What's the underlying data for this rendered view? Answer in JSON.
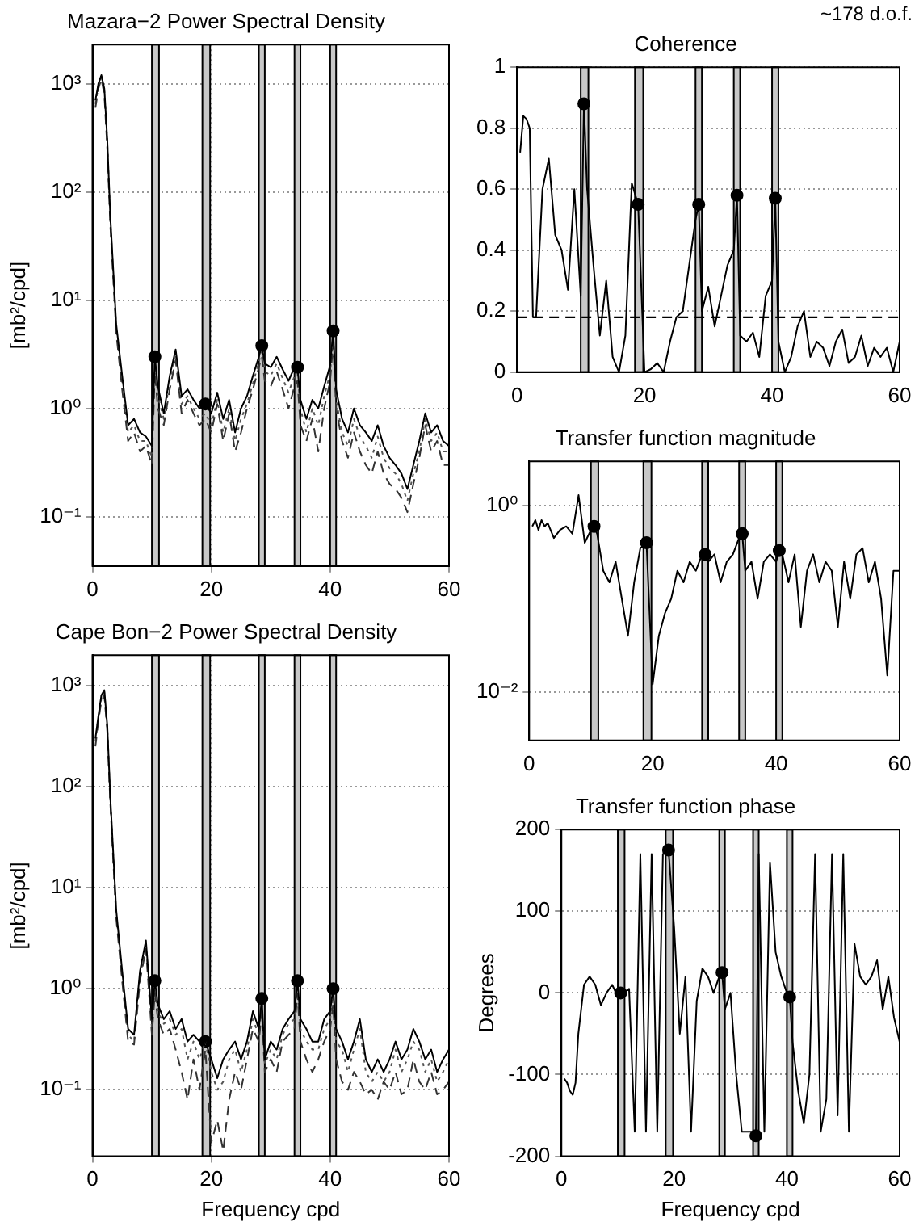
{
  "chart_data": [
    {
      "type": "line",
      "title": "Mazara−2 Power Spectral Density",
      "ylabel": "[mb²/cpd]",
      "log": true,
      "grid": true,
      "xlim": [
        0,
        60
      ],
      "xticks": [
        0,
        20,
        40,
        60
      ],
      "ylim": [
        0.035,
        2300
      ],
      "yticks": [
        {
          "value": 0.1,
          "label": "10⁻¹"
        },
        {
          "value": 1,
          "label": "10⁰"
        },
        {
          "value": 10,
          "label": "10¹"
        },
        {
          "value": 100,
          "label": "10²"
        },
        {
          "value": 1000,
          "label": "10³"
        }
      ],
      "x": [
        0.5,
        1,
        1.5,
        2,
        2.5,
        3,
        4,
        5,
        6,
        7,
        8,
        9,
        10,
        10.5,
        11,
        12,
        13,
        14,
        15,
        16,
        17,
        18,
        19,
        20,
        21,
        22,
        23,
        24,
        25,
        26,
        27,
        28,
        28.5,
        29,
        30,
        31,
        32,
        33,
        34,
        34.5,
        35,
        36,
        37,
        38,
        39,
        40,
        40.5,
        41,
        42,
        43,
        44,
        45,
        46,
        47,
        48,
        49,
        50,
        51,
        52,
        53,
        54,
        55,
        56,
        57,
        58,
        59,
        60
      ],
      "bands": [
        {
          "axis": "x",
          "from": 10,
          "to": 11.2,
          "color": "#c8c8c8"
        },
        {
          "axis": "x",
          "from": 18.5,
          "to": 19.8,
          "color": "#c8c8c8"
        },
        {
          "axis": "x",
          "from": 28,
          "to": 29,
          "color": "#c8c8c8"
        },
        {
          "axis": "x",
          "from": 34,
          "to": 35,
          "color": "#c8c8c8"
        },
        {
          "axis": "x",
          "from": 40,
          "to": 41,
          "color": "#c8c8c8"
        }
      ],
      "series": [
        {
          "color": "#000000",
          "line_style": "solid",
          "values": [
            700,
            1000,
            1200,
            900,
            300,
            60,
            6,
            2,
            0.7,
            0.8,
            0.6,
            0.55,
            0.45,
            3,
            1.6,
            0.9,
            2,
            3.5,
            1.3,
            1.5,
            1.2,
            1.0,
            1.1,
            0.9,
            1.4,
            0.8,
            1.2,
            0.6,
            1.0,
            1.3,
            2.0,
            3.0,
            3.8,
            2.6,
            2.4,
            3.0,
            2.3,
            1.8,
            2.4,
            2.4,
            1.2,
            0.8,
            1.2,
            1.0,
            1.6,
            2.5,
            5.2,
            1.5,
            0.8,
            0.6,
            1.0,
            0.7,
            0.6,
            0.5,
            0.7,
            0.45,
            0.35,
            0.3,
            0.25,
            0.18,
            0.3,
            0.5,
            0.9,
            0.6,
            0.7,
            0.5,
            0.45
          ]
        },
        {
          "color": "#333333",
          "line_style": "dashed",
          "values": [
            600,
            900,
            1100,
            800,
            250,
            50,
            5,
            1.5,
            0.5,
            0.6,
            0.4,
            0.45,
            0.3,
            2.2,
            1.0,
            0.7,
            1.5,
            2.8,
            0.9,
            1.2,
            0.9,
            0.7,
            0.8,
            0.6,
            1.1,
            0.5,
            0.9,
            0.4,
            0.6,
            1.0,
            1.5,
            2.4,
            3.0,
            1.8,
            1.6,
            2.2,
            1.5,
            1.0,
            1.6,
            1.8,
            0.7,
            0.5,
            0.8,
            0.4,
            1.0,
            1.8,
            4.0,
            1.0,
            0.5,
            0.35,
            0.6,
            0.4,
            0.3,
            0.25,
            0.4,
            0.25,
            0.2,
            0.18,
            0.15,
            0.11,
            0.2,
            0.35,
            0.7,
            0.4,
            0.5,
            0.3,
            0.3
          ]
        },
        {
          "color": "#555555",
          "line_style": "dotted",
          "values": [
            650,
            950,
            1150,
            850,
            280,
            55,
            5.5,
            1.8,
            0.6,
            0.7,
            0.5,
            0.5,
            0.35,
            2.6,
            1.3,
            0.8,
            1.8,
            3.0,
            1.1,
            1.3,
            1.0,
            0.8,
            0.9,
            0.7,
            1.2,
            0.6,
            1.0,
            0.5,
            0.8,
            1.1,
            1.7,
            2.7,
            3.4,
            2.2,
            2.0,
            2.6,
            1.9,
            1.4,
            2.0,
            2.1,
            1.0,
            0.6,
            1.0,
            0.7,
            1.3,
            2.1,
            4.6,
            1.2,
            0.6,
            0.45,
            0.8,
            0.55,
            0.45,
            0.35,
            0.55,
            0.35,
            0.28,
            0.25,
            0.2,
            0.14,
            0.25,
            0.4,
            0.8,
            0.5,
            0.6,
            0.4,
            0.4
          ]
        },
        {
          "type": "scatter",
          "marker": "circle",
          "color": "#000000",
          "x": [
            10.5,
            19,
            28.5,
            34.5,
            40.5
          ],
          "values": [
            3,
            1.1,
            3.8,
            2.4,
            5.2
          ]
        }
      ]
    },
    {
      "type": "line",
      "title": "Coherence",
      "annotations": [
        "~178 d.o.f."
      ],
      "grid": "y",
      "xlim": [
        0,
        60
      ],
      "xticks": [
        0,
        20,
        40,
        60
      ],
      "ylim": [
        0,
        1
      ],
      "yticks": [
        0,
        0.2,
        0.4,
        0.6,
        0.8,
        1
      ],
      "x": [
        0.5,
        1,
        1.5,
        2,
        2.5,
        3,
        4,
        5,
        6,
        7,
        8,
        9,
        10,
        10.5,
        11,
        12,
        13,
        14,
        15,
        16,
        17,
        18,
        19,
        20,
        21,
        22,
        23,
        24,
        25,
        26,
        27,
        28,
        28.5,
        29,
        30,
        31,
        32,
        33,
        34,
        34.5,
        35,
        36,
        37,
        38,
        39,
        40,
        40.5,
        41,
        42,
        43,
        44,
        45,
        46,
        47,
        48,
        49,
        50,
        51,
        52,
        53,
        54,
        55,
        56,
        57,
        58,
        59,
        60
      ],
      "bands": [
        {
          "axis": "x",
          "from": 10,
          "to": 11.2,
          "color": "#c8c8c8"
        },
        {
          "axis": "x",
          "from": 18.5,
          "to": 19.8,
          "color": "#c8c8c8"
        },
        {
          "axis": "x",
          "from": 28,
          "to": 29,
          "color": "#c8c8c8"
        },
        {
          "axis": "x",
          "from": 34,
          "to": 35,
          "color": "#c8c8c8"
        },
        {
          "axis": "x",
          "from": 40,
          "to": 41,
          "color": "#c8c8c8"
        }
      ],
      "ref_lines": [
        {
          "axis": "y",
          "value": 0.18,
          "color": "#000000",
          "line_style": "dashed"
        }
      ],
      "series": [
        {
          "color": "#000000",
          "line_style": "solid",
          "values": [
            0.72,
            0.84,
            0.83,
            0.8,
            0.18,
            0.18,
            0.6,
            0.7,
            0.45,
            0.4,
            0.27,
            0.6,
            0.25,
            0.88,
            0.6,
            0.35,
            0.12,
            0.3,
            0.05,
            0,
            0.12,
            0.62,
            0.55,
            0,
            0.01,
            0.03,
            0,
            0.1,
            0.18,
            0.2,
            0.35,
            0.5,
            0.55,
            0.2,
            0.28,
            0.15,
            0.25,
            0.35,
            0.4,
            0.58,
            0.12,
            0.1,
            0.13,
            0.05,
            0.25,
            0.3,
            0.57,
            0.1,
            0,
            0.05,
            0.15,
            0.2,
            0.05,
            0.1,
            0.08,
            0.02,
            0.1,
            0.14,
            0.03,
            0.05,
            0.12,
            0.02,
            0.08,
            0.05,
            0.08,
            0,
            0.1
          ]
        },
        {
          "type": "scatter",
          "marker": "circle",
          "color": "#000000",
          "x": [
            10.5,
            19,
            28.5,
            34.5,
            40.5
          ],
          "values": [
            0.88,
            0.55,
            0.55,
            0.58,
            0.57
          ]
        }
      ]
    },
    {
      "type": "line",
      "title": "Transfer function magnitude",
      "log": true,
      "grid": "y",
      "xlim": [
        0,
        60
      ],
      "xticks": [
        0,
        20,
        40,
        60
      ],
      "ylim": [
        0.003,
        3
      ],
      "yticks": [
        {
          "value": 0.01,
          "label": "10⁻²"
        },
        {
          "value": 1,
          "label": "10⁰"
        }
      ],
      "x": [
        0.5,
        1,
        1.5,
        2,
        2.5,
        3,
        4,
        5,
        6,
        7,
        8,
        9,
        10,
        10.5,
        11,
        12,
        13,
        14,
        15,
        16,
        17,
        18,
        19,
        20,
        21,
        22,
        23,
        24,
        25,
        26,
        27,
        28,
        28.5,
        29,
        30,
        31,
        32,
        33,
        34,
        34.5,
        35,
        36,
        37,
        38,
        39,
        40,
        40.5,
        41,
        42,
        43,
        44,
        45,
        46,
        47,
        48,
        49,
        50,
        51,
        52,
        53,
        54,
        55,
        56,
        57,
        58,
        59,
        60
      ],
      "bands": [
        {
          "axis": "x",
          "from": 10,
          "to": 11.2,
          "color": "#c8c8c8"
        },
        {
          "axis": "x",
          "from": 18.5,
          "to": 19.8,
          "color": "#c8c8c8"
        },
        {
          "axis": "x",
          "from": 28,
          "to": 29,
          "color": "#c8c8c8"
        },
        {
          "axis": "x",
          "from": 34,
          "to": 35,
          "color": "#c8c8c8"
        },
        {
          "axis": "x",
          "from": 40,
          "to": 41,
          "color": "#c8c8c8"
        }
      ],
      "series": [
        {
          "color": "#000000",
          "line_style": "solid",
          "values": [
            0.6,
            0.7,
            0.55,
            0.7,
            0.6,
            0.65,
            0.45,
            0.55,
            0.6,
            0.5,
            1.3,
            0.4,
            0.55,
            0.6,
            0.5,
            0.2,
            0.15,
            0.25,
            0.1,
            0.04,
            0.15,
            0.35,
            0.4,
            0.012,
            0.04,
            0.07,
            0.1,
            0.2,
            0.15,
            0.25,
            0.2,
            0.3,
            0.3,
            0.25,
            0.3,
            0.15,
            0.25,
            0.3,
            0.45,
            0.5,
            0.2,
            0.25,
            0.1,
            0.25,
            0.3,
            0.25,
            0.33,
            0.3,
            0.15,
            0.3,
            0.05,
            0.2,
            0.3,
            0.15,
            0.25,
            0.2,
            0.05,
            0.25,
            0.1,
            0.3,
            0.35,
            0.15,
            0.25,
            0.1,
            0.015,
            0.2,
            0.2
          ]
        },
        {
          "type": "scatter",
          "marker": "circle",
          "color": "#000000",
          "x": [
            10.5,
            19,
            28.5,
            34.5,
            40.5
          ],
          "values": [
            0.6,
            0.4,
            0.3,
            0.5,
            0.33
          ]
        }
      ]
    },
    {
      "type": "line",
      "title": "Cape Bon−2 Power Spectral Density",
      "xlabel": "Frequency cpd",
      "ylabel": "[mb²/cpd]",
      "log": true,
      "grid": true,
      "xlim": [
        0,
        60
      ],
      "xticks": [
        0,
        20,
        40,
        60
      ],
      "ylim": [
        0.022,
        2000
      ],
      "yticks": [
        {
          "value": 0.1,
          "label": "10⁻¹"
        },
        {
          "value": 1,
          "label": "10⁰"
        },
        {
          "value": 10,
          "label": "10¹"
        },
        {
          "value": 100,
          "label": "10²"
        },
        {
          "value": 1000,
          "label": "10³"
        }
      ],
      "x": [
        0.5,
        1,
        1.5,
        2,
        2.5,
        3,
        4,
        5,
        6,
        7,
        8,
        9,
        10,
        10.5,
        11,
        12,
        13,
        14,
        15,
        16,
        17,
        18,
        19,
        20,
        21,
        22,
        23,
        24,
        25,
        26,
        27,
        28,
        28.5,
        29,
        30,
        31,
        32,
        33,
        34,
        34.5,
        35,
        36,
        37,
        38,
        39,
        40,
        40.5,
        41,
        42,
        43,
        44,
        45,
        46,
        47,
        48,
        49,
        50,
        51,
        52,
        53,
        54,
        55,
        56,
        57,
        58,
        59,
        60
      ],
      "bands": [
        {
          "axis": "x",
          "from": 10,
          "to": 11.2,
          "color": "#c8c8c8"
        },
        {
          "axis": "x",
          "from": 18.5,
          "to": 19.8,
          "color": "#c8c8c8"
        },
        {
          "axis": "x",
          "from": 28,
          "to": 29,
          "color": "#c8c8c8"
        },
        {
          "axis": "x",
          "from": 34,
          "to": 35,
          "color": "#c8c8c8"
        },
        {
          "axis": "x",
          "from": 40,
          "to": 41,
          "color": "#c8c8c8"
        }
      ],
      "series": [
        {
          "color": "#000000",
          "line_style": "solid",
          "values": [
            300,
            500,
            800,
            900,
            400,
            80,
            6,
            1.5,
            0.4,
            0.35,
            1.5,
            3,
            0.5,
            1.2,
            0.7,
            0.5,
            0.6,
            0.4,
            0.5,
            0.3,
            0.35,
            0.3,
            0.3,
            0.2,
            0.13,
            0.2,
            0.25,
            0.3,
            0.2,
            0.3,
            0.6,
            0.4,
            0.8,
            0.2,
            0.3,
            0.25,
            0.4,
            0.5,
            0.6,
            1.2,
            0.5,
            0.4,
            0.3,
            0.3,
            0.5,
            0.6,
            1.0,
            0.4,
            0.3,
            0.2,
            0.3,
            0.5,
            0.2,
            0.15,
            0.2,
            0.15,
            0.2,
            0.3,
            0.2,
            0.25,
            0.4,
            0.3,
            0.2,
            0.25,
            0.15,
            0.2,
            0.25
          ]
        },
        {
          "color": "#333333",
          "line_style": "dashed",
          "values": [
            250,
            450,
            700,
            800,
            350,
            70,
            5,
            1.2,
            0.3,
            0.28,
            1.2,
            2.5,
            0.35,
            0.9,
            0.5,
            0.35,
            0.4,
            0.25,
            0.15,
            0.08,
            0.2,
            0.1,
            0.25,
            0.03,
            0.05,
            0.025,
            0.08,
            0.15,
            0.1,
            0.2,
            0.4,
            0.3,
            0.6,
            0.15,
            0.2,
            0.15,
            0.3,
            0.35,
            0.4,
            0.9,
            0.3,
            0.2,
            0.15,
            0.2,
            0.3,
            0.4,
            0.7,
            0.2,
            0.12,
            0.1,
            0.15,
            0.12,
            0.09,
            0.1,
            0.08,
            0.12,
            0.1,
            0.15,
            0.09,
            0.1,
            0.2,
            0.12,
            0.1,
            0.15,
            0.09,
            0.1,
            0.12
          ]
        },
        {
          "color": "#555555",
          "line_style": "dotted",
          "values": [
            280,
            480,
            750,
            850,
            380,
            75,
            5.5,
            1.3,
            0.35,
            0.3,
            1.3,
            2.8,
            0.4,
            1.0,
            0.6,
            0.45,
            0.5,
            0.35,
            0.4,
            0.2,
            0.3,
            0.2,
            0.3,
            0.15,
            0.1,
            0.12,
            0.2,
            0.25,
            0.15,
            0.25,
            0.5,
            0.35,
            0.7,
            0.18,
            0.25,
            0.2,
            0.35,
            0.45,
            0.5,
            1.0,
            0.4,
            0.3,
            0.25,
            0.25,
            0.4,
            0.5,
            0.85,
            0.3,
            0.25,
            0.15,
            0.25,
            0.4,
            0.15,
            0.12,
            0.15,
            0.12,
            0.15,
            0.25,
            0.15,
            0.2,
            0.3,
            0.25,
            0.15,
            0.2,
            0.12,
            0.15,
            0.2
          ]
        },
        {
          "type": "scatter",
          "marker": "circle",
          "color": "#000000",
          "x": [
            10.5,
            19,
            28.5,
            34.5,
            40.5
          ],
          "values": [
            1.2,
            0.3,
            0.8,
            1.2,
            1.0
          ]
        }
      ]
    },
    {
      "type": "line",
      "title": "Transfer function phase",
      "xlabel": "Frequency cpd",
      "ylabel": "Degrees",
      "grid": "y",
      "xlim": [
        0,
        60
      ],
      "xticks": [
        0,
        20,
        40,
        60
      ],
      "ylim": [
        -200,
        200
      ],
      "yticks": [
        -200,
        -100,
        0,
        100,
        200
      ],
      "x": [
        0.5,
        1,
        1.5,
        2,
        2.5,
        3,
        4,
        5,
        6,
        7,
        8,
        9,
        10,
        10.5,
        11,
        12,
        13,
        14,
        15,
        16,
        17,
        18,
        19,
        20,
        21,
        22,
        23,
        24,
        25,
        26,
        27,
        28,
        28.5,
        29,
        30,
        31,
        32,
        33,
        34,
        34.5,
        35,
        36,
        37,
        38,
        39,
        40,
        40.5,
        41,
        42,
        43,
        44,
        45,
        46,
        47,
        48,
        49,
        50,
        51,
        52,
        53,
        54,
        55,
        56,
        57,
        58,
        59,
        60
      ],
      "bands": [
        {
          "axis": "x",
          "from": 10,
          "to": 11.2,
          "color": "#c8c8c8"
        },
        {
          "axis": "x",
          "from": 18.5,
          "to": 19.8,
          "color": "#c8c8c8"
        },
        {
          "axis": "x",
          "from": 28,
          "to": 29,
          "color": "#c8c8c8"
        },
        {
          "axis": "x",
          "from": 34,
          "to": 35,
          "color": "#c8c8c8"
        },
        {
          "axis": "x",
          "from": 40,
          "to": 41,
          "color": "#c8c8c8"
        }
      ],
      "series": [
        {
          "color": "#000000",
          "line_style": "solid",
          "values": [
            -105,
            -110,
            -120,
            -125,
            -110,
            -50,
            10,
            20,
            10,
            -15,
            0,
            10,
            -5,
            0,
            0,
            5,
            -170,
            170,
            -170,
            170,
            -170,
            170,
            175,
            80,
            -50,
            20,
            -170,
            -10,
            30,
            20,
            0,
            20,
            25,
            -20,
            0,
            -100,
            -170,
            -170,
            -170,
            -175,
            170,
            -170,
            160,
            50,
            20,
            0,
            -5,
            -60,
            -120,
            -160,
            -100,
            170,
            -170,
            -130,
            170,
            -150,
            170,
            -170,
            60,
            20,
            10,
            20,
            40,
            -20,
            20,
            -30,
            -60
          ]
        },
        {
          "type": "scatter",
          "marker": "circle",
          "color": "#000000",
          "x": [
            10.5,
            19,
            28.5,
            34.5,
            40.5
          ],
          "values": [
            0,
            175,
            25,
            -175,
            -5
          ]
        }
      ]
    }
  ]
}
